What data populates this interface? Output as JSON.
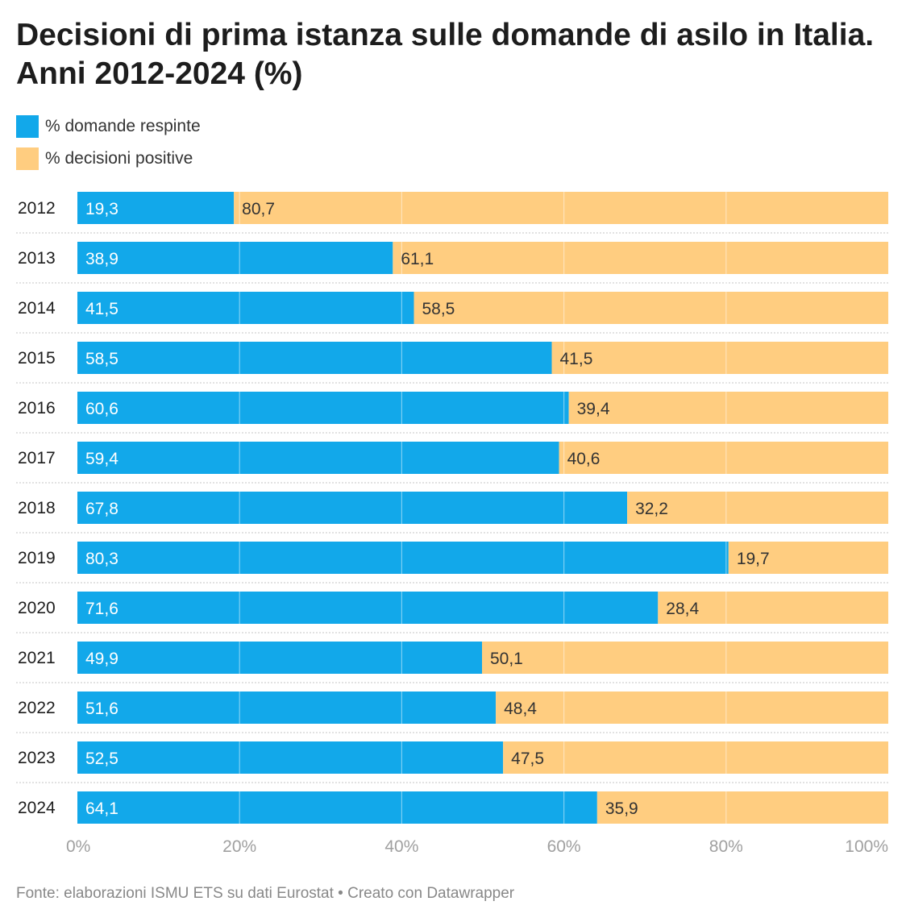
{
  "title": "Decisioni di prima istanza sulle domande di asilo in Italia. Anni 2012-2024 (%)",
  "legend": [
    {
      "label": "% domande respinte",
      "color": "#12a8ea"
    },
    {
      "label": "% decisioni positive",
      "color": "#ffcd80"
    }
  ],
  "footer": "Fonte: elaborazioni ISMU ETS su dati Eurostat • Creato con Datawrapper",
  "chart_data": {
    "type": "bar",
    "orientation": "horizontal",
    "stacked": true,
    "categories": [
      "2012",
      "2013",
      "2014",
      "2015",
      "2016",
      "2017",
      "2018",
      "2019",
      "2020",
      "2021",
      "2022",
      "2023",
      "2024"
    ],
    "series": [
      {
        "name": "% domande respinte",
        "color": "#12a8ea",
        "values": [
          19.3,
          38.9,
          41.5,
          58.5,
          60.6,
          59.4,
          67.8,
          80.3,
          71.6,
          49.9,
          51.6,
          52.5,
          64.1
        ],
        "labels": [
          "19,3",
          "38,9",
          "41,5",
          "58,5",
          "60,6",
          "59,4",
          "67,8",
          "80,3",
          "71,6",
          "49,9",
          "51,6",
          "52,5",
          "64,1"
        ]
      },
      {
        "name": "% decisioni positive",
        "color": "#ffcd80",
        "values": [
          80.7,
          61.1,
          58.5,
          41.5,
          39.4,
          40.6,
          32.2,
          19.7,
          28.4,
          50.1,
          48.4,
          47.5,
          35.9
        ],
        "labels": [
          "80,7",
          "61,1",
          "58,5",
          "41,5",
          "39,4",
          "40,6",
          "32,2",
          "19,7",
          "28,4",
          "50,1",
          "48,4",
          "47,5",
          "35,9"
        ]
      }
    ],
    "xlim": [
      0,
      100
    ],
    "x_ticks": [
      0,
      20,
      40,
      60,
      80,
      100
    ],
    "x_tick_labels": [
      "0%",
      "20%",
      "40%",
      "60%",
      "80%",
      "100%"
    ],
    "grid": true,
    "legend_position": "top-left"
  }
}
